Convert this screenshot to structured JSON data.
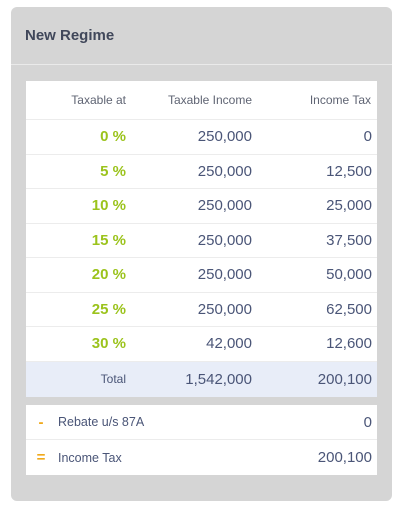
{
  "card": {
    "title": "New Regime"
  },
  "table": {
    "headers": {
      "taxable_at": "Taxable at",
      "taxable_income": "Taxable Income",
      "income_tax": "Income Tax"
    },
    "rows": [
      {
        "rate": "0 %",
        "income": "250,000",
        "tax": "0"
      },
      {
        "rate": "5 %",
        "income": "250,000",
        "tax": "12,500"
      },
      {
        "rate": "10 %",
        "income": "250,000",
        "tax": "25,000"
      },
      {
        "rate": "15 %",
        "income": "250,000",
        "tax": "37,500"
      },
      {
        "rate": "20 %",
        "income": "250,000",
        "tax": "50,000"
      },
      {
        "rate": "25 %",
        "income": "250,000",
        "tax": "62,500"
      },
      {
        "rate": "30 %",
        "income": "42,000",
        "tax": "12,600"
      }
    ],
    "total": {
      "label": "Total",
      "income": "1,542,000",
      "tax": "200,100"
    }
  },
  "summary": {
    "rebate": {
      "symbol": "-",
      "label": "Rebate u/s 87A",
      "value": "0"
    },
    "income_tax": {
      "symbol": "=",
      "label": "Income Tax",
      "value": "200,100"
    }
  }
}
